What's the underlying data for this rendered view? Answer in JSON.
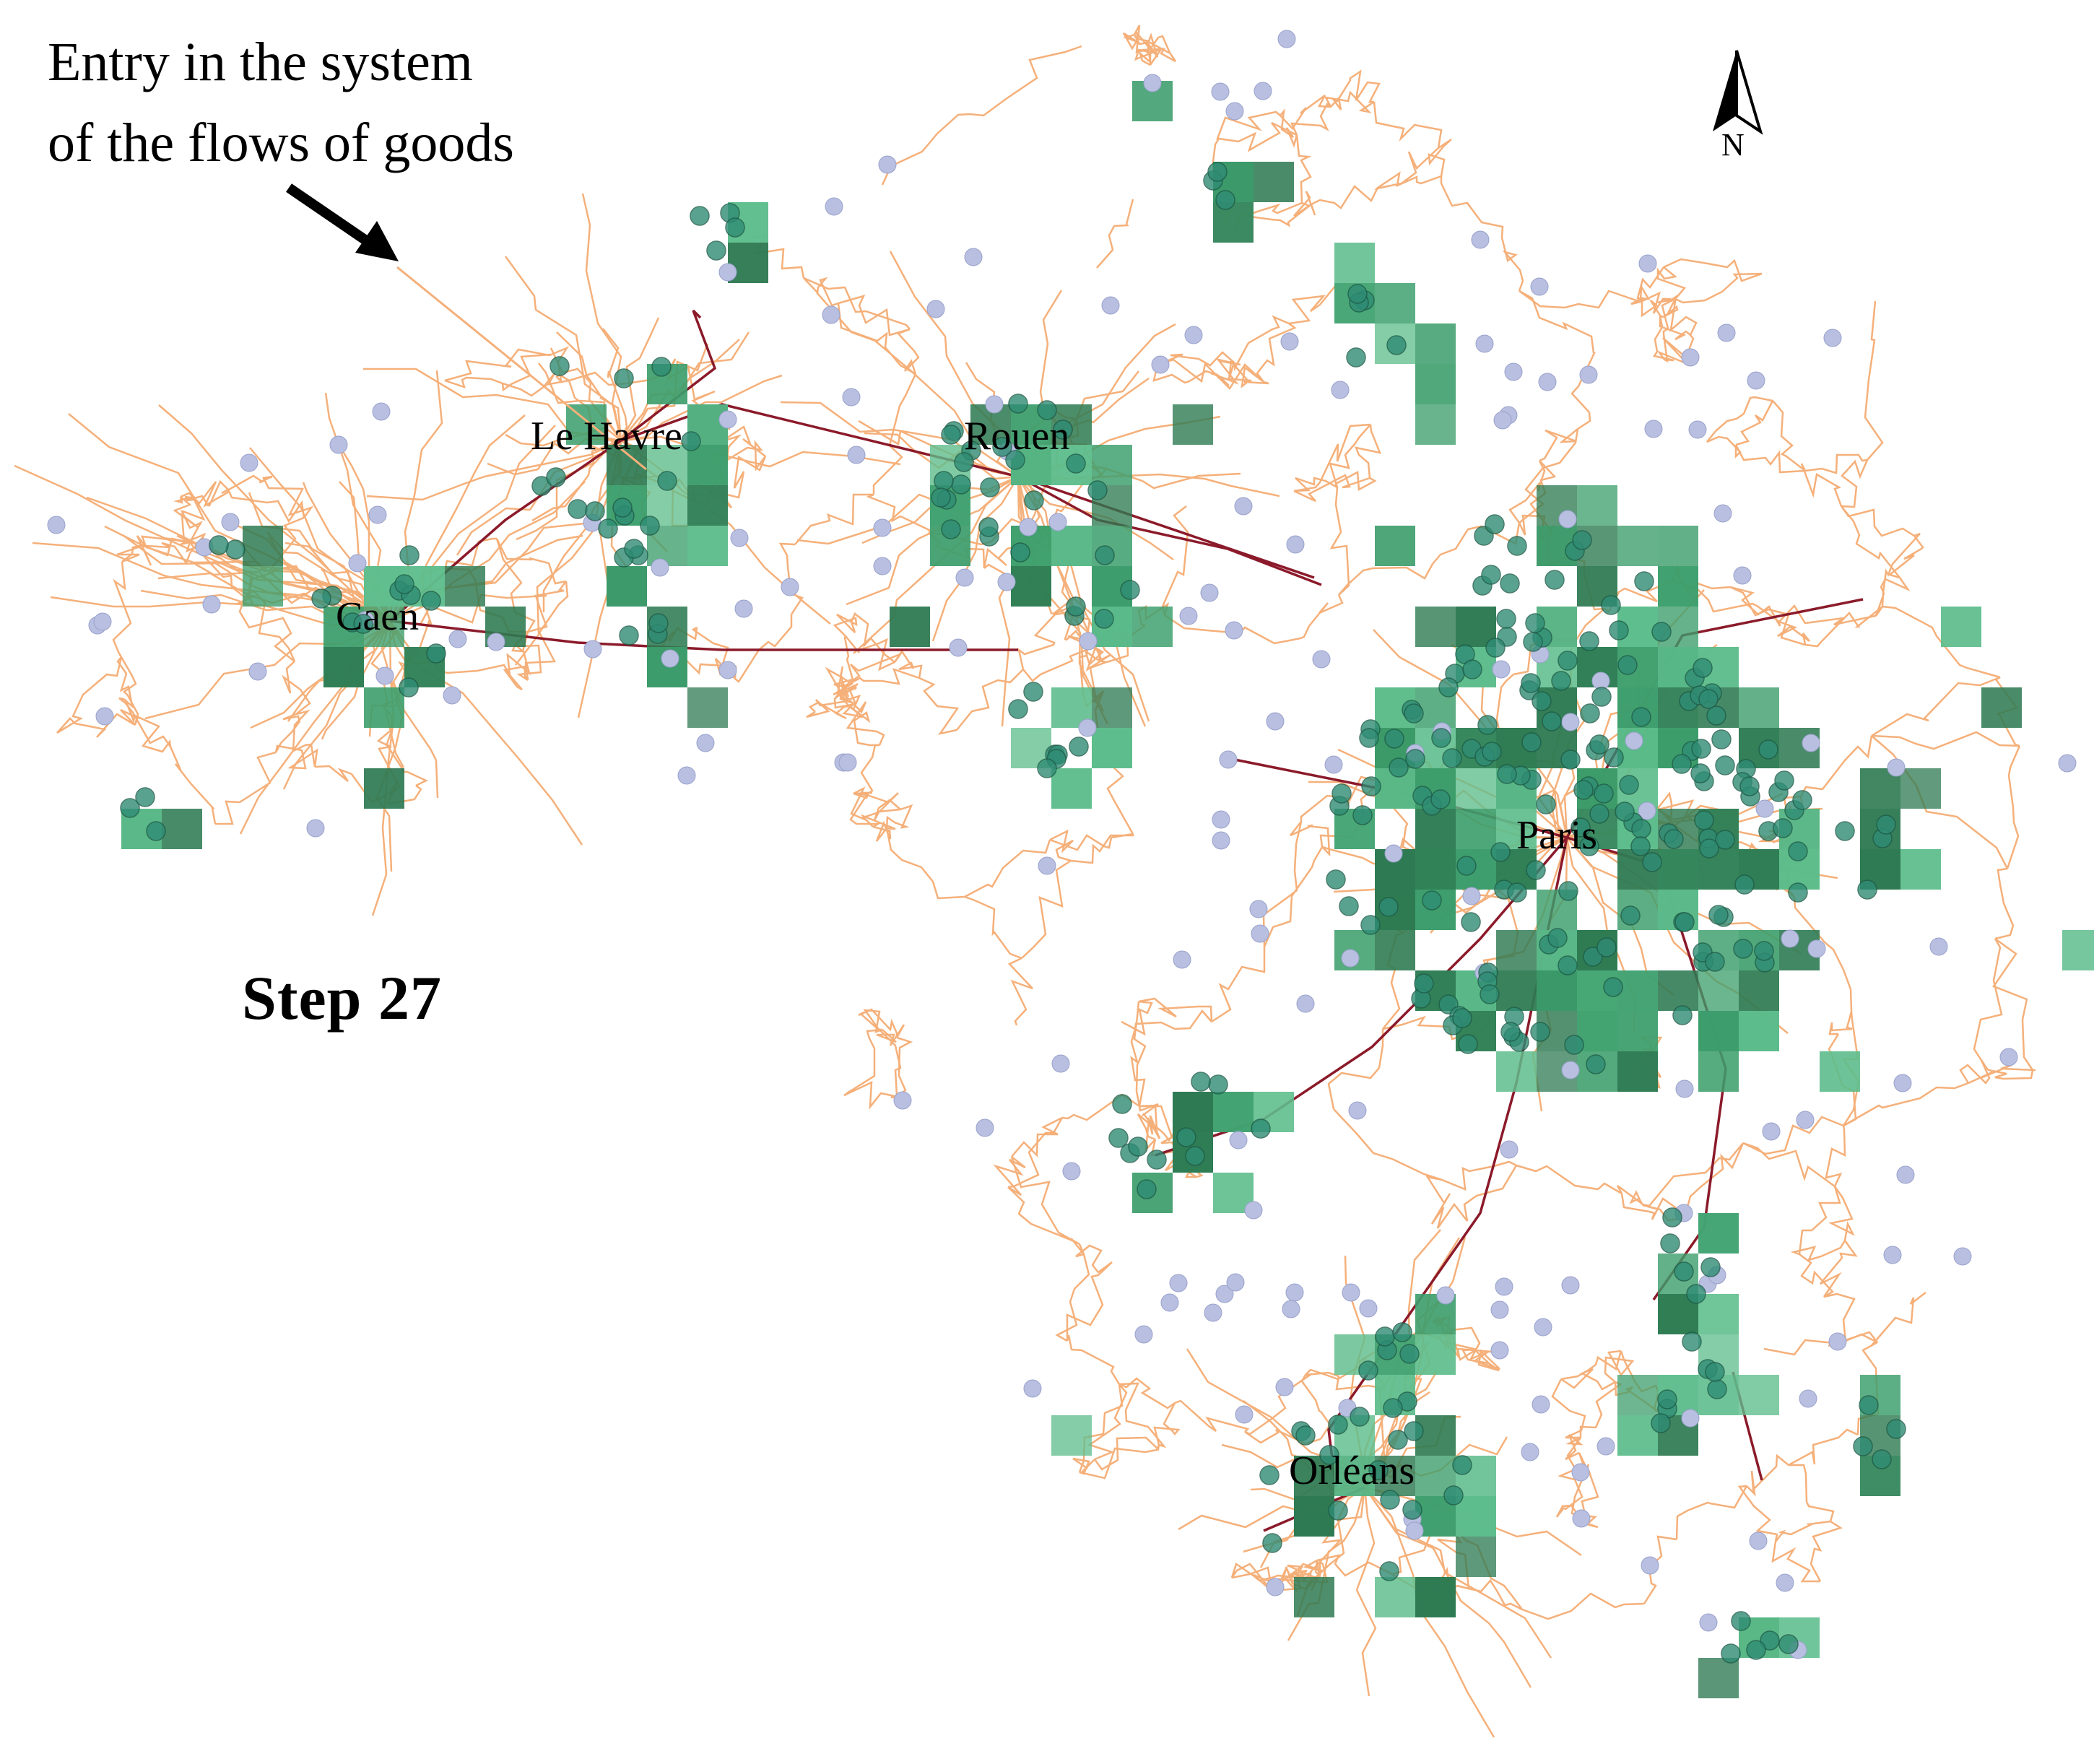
{
  "annotation": {
    "line1": "Entry in the system",
    "line2": "of the flows of goods"
  },
  "step_label": "Step 27",
  "north_label": "N",
  "cities": [
    {
      "key": "le-havre",
      "name": "Le Havre"
    },
    {
      "key": "rouen",
      "name": "Rouen"
    },
    {
      "key": "caen",
      "name": "Caen"
    },
    {
      "key": "paris",
      "name": "Paris"
    },
    {
      "key": "orleans",
      "name": "Orléans"
    }
  ],
  "colors": {
    "road": "#f5b07a",
    "highway": "#8b1a2a",
    "cell_light": "#5ebd8c",
    "cell_mid": "#3d9e6c",
    "cell_dark": "#2e7a52",
    "node": "#b8bfe0",
    "node_active": "#2f8c74",
    "background": "#ffffff"
  }
}
